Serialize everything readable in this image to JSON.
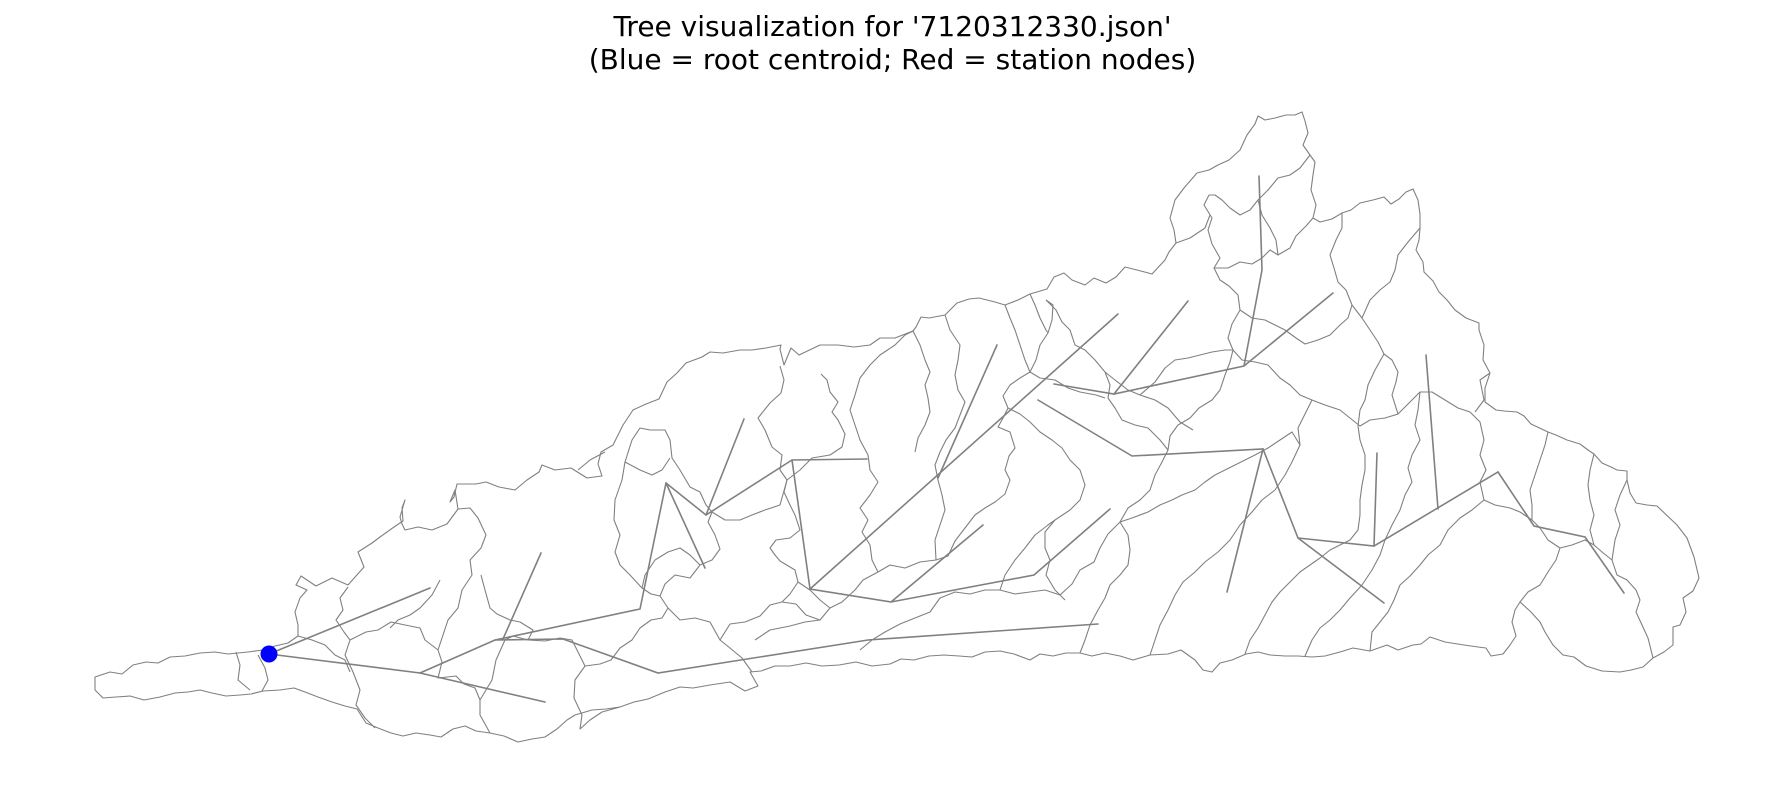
{
  "figure": {
    "title_line1": "Tree visualization for '7120312330.json'",
    "title_line2": "(Blue = root centroid; Red = station nodes)"
  },
  "legend_colors": {
    "root_centroid": "#0000ff",
    "station_nodes": "#ff0000",
    "edges": "#808080",
    "subbasin_boundaries": "#808080"
  },
  "tree": {
    "root_node_count": 1,
    "station_node_count": 0
  }
}
